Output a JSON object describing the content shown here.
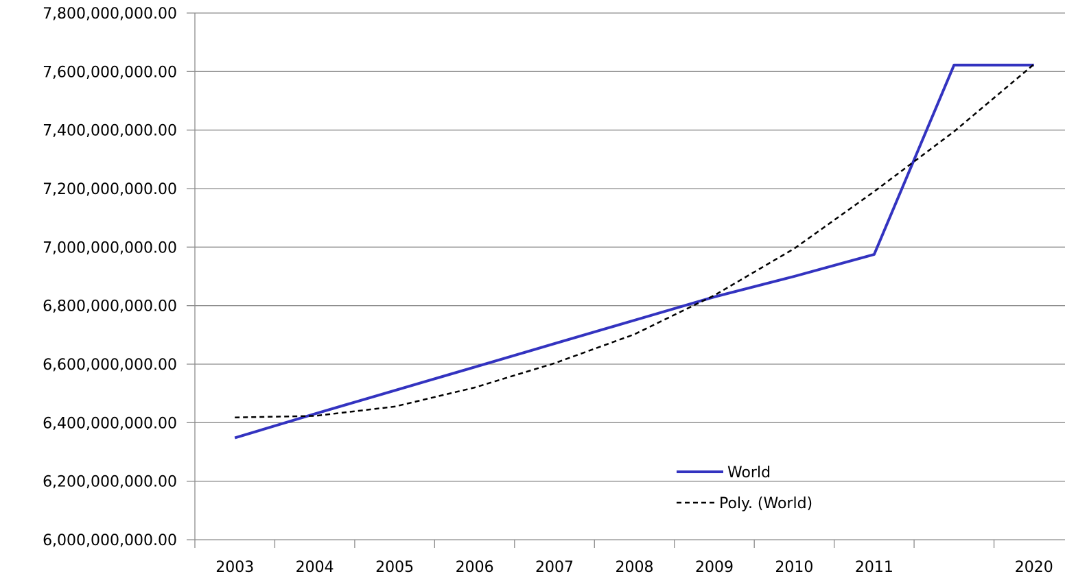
{
  "chart_data": {
    "type": "line",
    "title": "",
    "xlabel": "",
    "ylabel": "",
    "categories": [
      "2003",
      "2004",
      "2005",
      "2006",
      "2007",
      "2008",
      "2009",
      "2010",
      "2011",
      "",
      "2020"
    ],
    "y_tick_labels": [
      "6,000,000,000.00",
      "6,200,000,000.00",
      "6,400,000,000.00",
      "6,600,000,000.00",
      "6,800,000,000.00",
      "7,000,000,000.00",
      "7,200,000,000.00",
      "7,400,000,000.00",
      "7,600,000,000.00",
      "7,800,000,000.00"
    ],
    "ylim": [
      6000000000,
      7800000000
    ],
    "grid": true,
    "legend_position": "bottom-right",
    "series": [
      {
        "name": "World",
        "style": "solid",
        "color": "#3333c0",
        "values": [
          6348000000,
          6430000000,
          6510000000,
          6590000000,
          6670000000,
          6750000000,
          6830000000,
          6900000000,
          6975000000,
          7622000000,
          7622000000
        ]
      },
      {
        "name": "Poly. (World)",
        "style": "dashed",
        "color": "#000000",
        "values": [
          6418000000,
          6423000000,
          6455000000,
          6520000000,
          6603000000,
          6702000000,
          6835000000,
          6995000000,
          7190000000,
          7395000000,
          7625000000
        ]
      }
    ]
  }
}
